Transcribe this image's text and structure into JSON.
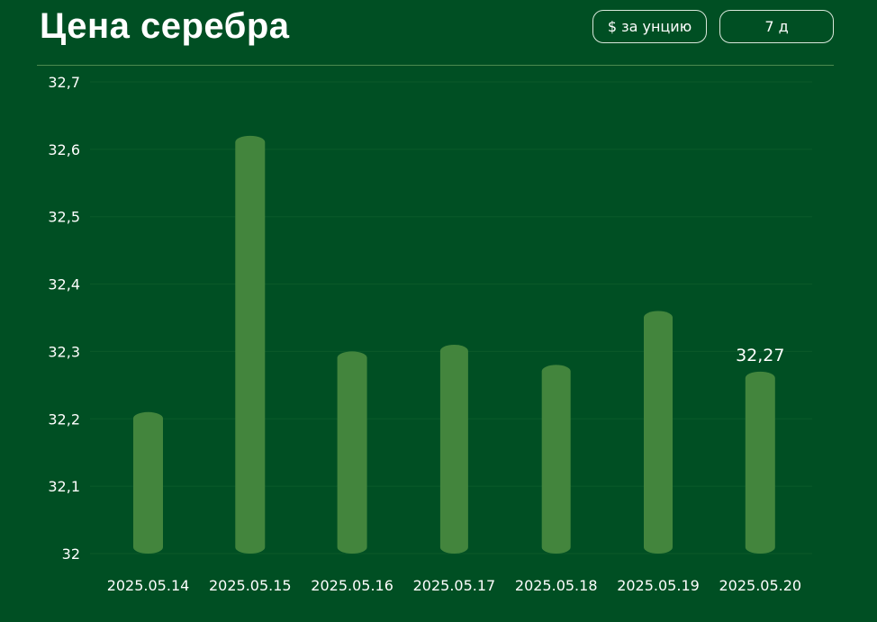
{
  "header": {
    "title": "Цена серебра",
    "unit_button": "$ за унцию",
    "period_button": "7 д"
  },
  "colors": {
    "background": "#004f23",
    "bar": "#43853d",
    "grid": "#0b5a2a",
    "divider": "#4c8a4f",
    "text": "#ffffff"
  },
  "chart_data": {
    "type": "bar",
    "title": "Цена серебра",
    "xlabel": "",
    "ylabel": "",
    "categories": [
      "2025.05.14",
      "2025.05.15",
      "2025.05.16",
      "2025.05.17",
      "2025.05.18",
      "2025.05.19",
      "2025.05.20"
    ],
    "values": [
      32.21,
      32.62,
      32.3,
      32.31,
      32.28,
      32.36,
      32.27
    ],
    "ylim": [
      32,
      32.7
    ],
    "yticks": [
      "32",
      "32,1",
      "32,2",
      "32,3",
      "32,4",
      "32,5",
      "32,6",
      "32,7"
    ],
    "annotation": {
      "category": "2025.05.20",
      "text": "32,27"
    },
    "grid": true,
    "legend": "none"
  }
}
